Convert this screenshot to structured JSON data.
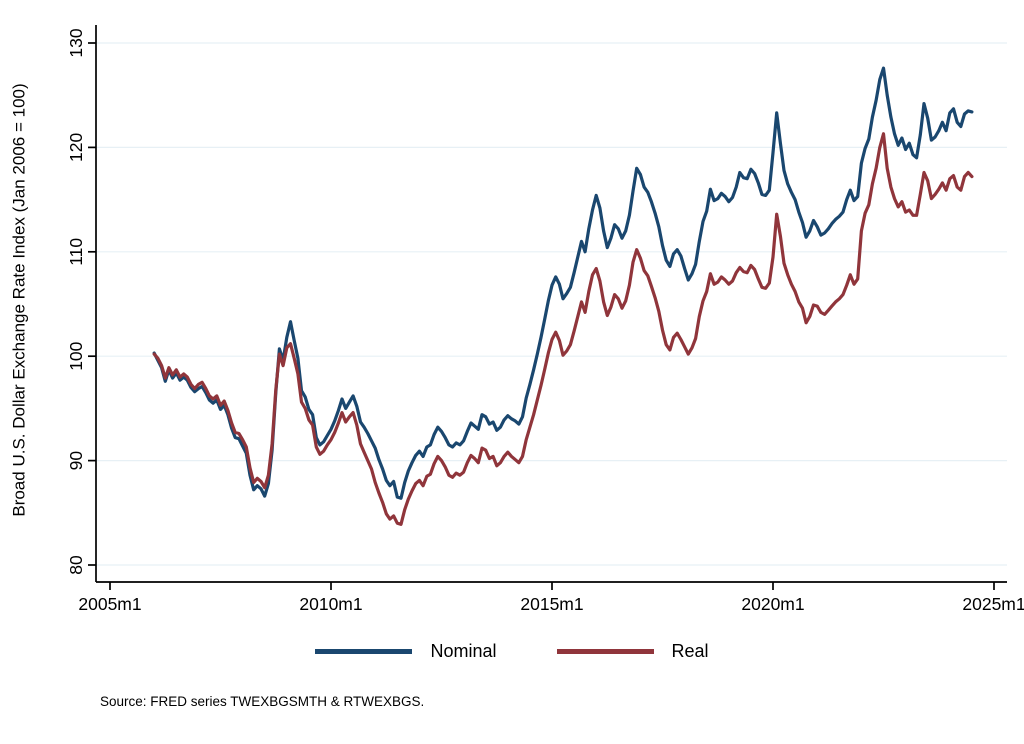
{
  "figure": {
    "y_axis_label": "Broad U.S. Dollar Exchange Rate Index (Jan 2006 = 100)",
    "source_note": "Source: FRED series TWEXBGSMTH & RTWEXBGS.",
    "background_color": "#ffffff",
    "gridline_color": "#e7f0f5",
    "axis_color": "#000000"
  },
  "chart_data": {
    "type": "line",
    "title": "",
    "xlabel": "",
    "ylabel": "Broad U.S. Dollar Exchange Rate Index (Jan 2006 = 100)",
    "frequency": "monthly",
    "x_start": "2006m1",
    "x_end": "2024m7",
    "x_axis_range": [
      "2005m1",
      "2025m1"
    ],
    "x_tick_labels": [
      "2005m1",
      "2010m1",
      "2015m1",
      "2020m1",
      "2025m1"
    ],
    "y_ticks": [
      80,
      90,
      100,
      110,
      120,
      130
    ],
    "ylim": [
      80,
      130
    ],
    "grid": true,
    "legend_position": "bottom-center",
    "series": [
      {
        "name": "Nominal",
        "color": "#1a476f",
        "values": [
          100.3,
          99.6,
          98.9,
          97.6,
          98.7,
          97.9,
          98.4,
          97.7,
          98.0,
          97.7,
          97.0,
          96.6,
          96.9,
          97.1,
          96.5,
          95.8,
          95.5,
          95.8,
          94.9,
          95.3,
          94.4,
          93.1,
          92.2,
          92.1,
          91.4,
          90.7,
          88.6,
          87.2,
          87.6,
          87.3,
          86.6,
          87.8,
          91.0,
          96.5,
          100.7,
          99.6,
          101.8,
          103.3,
          101.5,
          99.8,
          96.7,
          96.1,
          94.9,
          94.4,
          92.2,
          91.5,
          91.8,
          92.4,
          93.0,
          93.8,
          94.8,
          95.9,
          95.0,
          95.6,
          96.2,
          95.2,
          93.7,
          93.2,
          92.6,
          91.9,
          91.2,
          90.1,
          89.2,
          88.1,
          87.6,
          88.0,
          86.5,
          86.4,
          87.9,
          89.0,
          89.8,
          90.5,
          90.9,
          90.4,
          91.3,
          91.5,
          92.5,
          93.2,
          92.8,
          92.2,
          91.5,
          91.3,
          91.7,
          91.5,
          91.9,
          92.8,
          93.6,
          93.3,
          93.0,
          94.4,
          94.2,
          93.5,
          93.7,
          92.9,
          93.2,
          93.9,
          94.3,
          94.0,
          93.8,
          93.5,
          94.2,
          96.0,
          97.3,
          98.7,
          100.2,
          101.8,
          103.5,
          105.3,
          106.8,
          107.6,
          106.9,
          105.5,
          106.0,
          106.6,
          108.0,
          109.5,
          111.0,
          110.0,
          112.2,
          114.0,
          115.4,
          114.2,
          112.0,
          110.4,
          111.3,
          112.6,
          112.2,
          111.3,
          112.0,
          113.5,
          115.8,
          118.0,
          117.4,
          116.2,
          115.7,
          114.8,
          113.7,
          112.4,
          110.6,
          109.2,
          108.6,
          109.8,
          110.2,
          109.6,
          108.4,
          107.3,
          107.9,
          108.8,
          111.0,
          112.9,
          113.9,
          116.0,
          114.9,
          115.1,
          115.6,
          115.3,
          114.8,
          115.2,
          116.2,
          117.6,
          117.1,
          117.0,
          117.9,
          117.5,
          116.6,
          115.5,
          115.4,
          115.9,
          119.5,
          123.3,
          120.4,
          117.8,
          116.5,
          115.7,
          115.0,
          113.8,
          112.8,
          111.4,
          112.0,
          113.0,
          112.4,
          111.6,
          111.8,
          112.2,
          112.7,
          113.1,
          113.4,
          113.8,
          115.0,
          115.9,
          114.9,
          115.3,
          118.5,
          119.9,
          120.8,
          122.9,
          124.5,
          126.5,
          127.6,
          125.0,
          122.9,
          121.3,
          120.2,
          120.9,
          119.8,
          120.4,
          119.3,
          119.0,
          121.2,
          124.2,
          122.8,
          120.7,
          121.0,
          121.6,
          122.4,
          121.6,
          123.3,
          123.7,
          122.4,
          122.0,
          123.2,
          123.5,
          123.4
        ]
      },
      {
        "name": "Real",
        "color": "#90353b",
        "values": [
          100.2,
          99.8,
          99.1,
          97.9,
          98.9,
          98.2,
          98.7,
          98.0,
          98.3,
          98.0,
          97.3,
          96.9,
          97.3,
          97.5,
          96.9,
          96.2,
          95.9,
          96.2,
          95.3,
          95.7,
          94.8,
          93.6,
          92.7,
          92.6,
          92.0,
          91.3,
          89.3,
          87.9,
          88.3,
          88.0,
          87.4,
          88.6,
          91.6,
          96.8,
          100.2,
          99.1,
          100.8,
          101.2,
          99.8,
          98.3,
          95.6,
          95.0,
          93.9,
          93.4,
          91.3,
          90.6,
          90.9,
          91.5,
          92.0,
          92.7,
          93.6,
          94.6,
          93.7,
          94.2,
          94.6,
          93.4,
          91.6,
          90.8,
          90.0,
          89.2,
          87.9,
          86.9,
          86.0,
          84.9,
          84.4,
          84.7,
          84.0,
          83.9,
          85.3,
          86.3,
          87.1,
          87.8,
          88.1,
          87.6,
          88.5,
          88.7,
          89.7,
          90.4,
          90.0,
          89.4,
          88.6,
          88.4,
          88.8,
          88.6,
          88.9,
          89.8,
          90.5,
          90.2,
          89.8,
          91.2,
          91.0,
          90.2,
          90.4,
          89.5,
          89.8,
          90.4,
          90.8,
          90.4,
          90.1,
          89.8,
          90.4,
          92.0,
          93.2,
          94.4,
          95.8,
          97.2,
          98.7,
          100.3,
          101.6,
          102.3,
          101.5,
          100.1,
          100.5,
          101.1,
          102.4,
          103.8,
          105.2,
          104.2,
          106.2,
          107.8,
          108.4,
          107.2,
          105.2,
          103.9,
          104.7,
          105.9,
          105.5,
          104.6,
          105.3,
          106.8,
          109.0,
          110.2,
          109.4,
          108.2,
          107.7,
          106.7,
          105.6,
          104.3,
          102.5,
          101.1,
          100.6,
          101.8,
          102.2,
          101.6,
          100.9,
          100.2,
          100.8,
          101.7,
          103.8,
          105.3,
          106.2,
          107.9,
          106.9,
          107.1,
          107.6,
          107.3,
          106.9,
          107.2,
          108.0,
          108.5,
          108.1,
          108.0,
          108.7,
          108.3,
          107.4,
          106.6,
          106.5,
          107.0,
          109.5,
          113.6,
          111.5,
          108.9,
          107.8,
          106.9,
          106.2,
          105.2,
          104.6,
          103.2,
          103.8,
          104.9,
          104.8,
          104.2,
          104.0,
          104.4,
          104.8,
          105.2,
          105.5,
          105.9,
          106.8,
          107.8,
          106.9,
          107.4,
          112.0,
          113.7,
          114.5,
          116.5,
          118.0,
          120.0,
          121.3,
          118.0,
          116.2,
          115.1,
          114.3,
          114.8,
          113.8,
          114.0,
          113.5,
          113.5,
          115.5,
          117.6,
          116.8,
          115.1,
          115.5,
          116.0,
          116.6,
          115.9,
          117.0,
          117.3,
          116.2,
          115.9,
          117.2,
          117.6,
          117.2
        ]
      }
    ]
  }
}
